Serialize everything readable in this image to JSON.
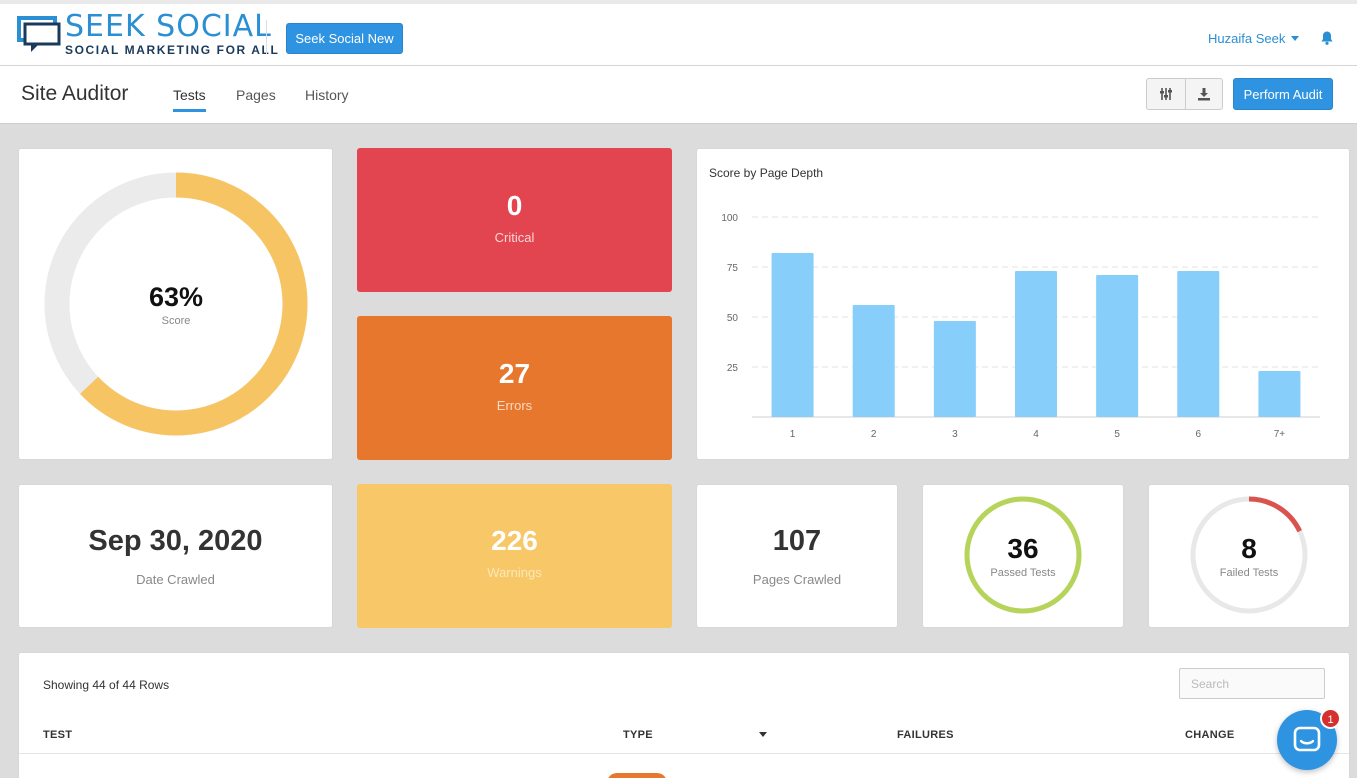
{
  "brand": {
    "name": "SEEK SOCIAL",
    "tagline": "SOCIAL MARKETING FOR ALL",
    "new_button": "Seek Social New"
  },
  "user": {
    "name": "Huzaifa Seek"
  },
  "icons": {
    "bell": "bell-icon",
    "columns": "sliders-icon",
    "download": "download-icon",
    "chat": "chat-icon"
  },
  "subheader": {
    "title": "Site Auditor",
    "tabs": [
      {
        "label": "Tests",
        "active": true
      },
      {
        "label": "Pages",
        "active": false
      },
      {
        "label": "History",
        "active": false
      }
    ],
    "perform_audit": "Perform Audit"
  },
  "score": {
    "value": "63%",
    "label": "Score",
    "percent": 63
  },
  "stats": {
    "critical": {
      "value": "0",
      "label": "Critical"
    },
    "errors": {
      "value": "27",
      "label": "Errors"
    },
    "warnings": {
      "value": "226",
      "label": "Warnings"
    },
    "date_crawled": {
      "value": "Sep 30, 2020",
      "label": "Date Crawled"
    },
    "pages_crawled": {
      "value": "107",
      "label": "Pages Crawled"
    },
    "passed_tests": {
      "value": "36",
      "label": "Passed Tests",
      "fraction": 1.0
    },
    "failed_tests": {
      "value": "8",
      "label": "Failed Tests",
      "fraction": 0.18
    }
  },
  "colors": {
    "accent": "#2e93e0",
    "critical": "#e2454f",
    "errors": "#e6772d",
    "warnings": "#f7c768",
    "passed": "#b7d45a",
    "failed": "#d9534f",
    "bar": "#87cefa"
  },
  "chart_data": {
    "type": "bar",
    "title": "Score by Page Depth",
    "categories": [
      "1",
      "2",
      "3",
      "4",
      "5",
      "6",
      "7+"
    ],
    "values": [
      82,
      56,
      48,
      73,
      71,
      73,
      23
    ],
    "yticks": [
      25,
      50,
      75,
      100
    ],
    "ylim": [
      0,
      100
    ],
    "xlabel": "",
    "ylabel": "",
    "grid": true
  },
  "table": {
    "rows_info": "Showing 44 of 44 Rows",
    "search_placeholder": "Search",
    "headers": {
      "test": "TEST",
      "type": "TYPE",
      "failures": "FAILURES",
      "change": "CHANGE"
    }
  },
  "chat": {
    "badge": "1"
  }
}
